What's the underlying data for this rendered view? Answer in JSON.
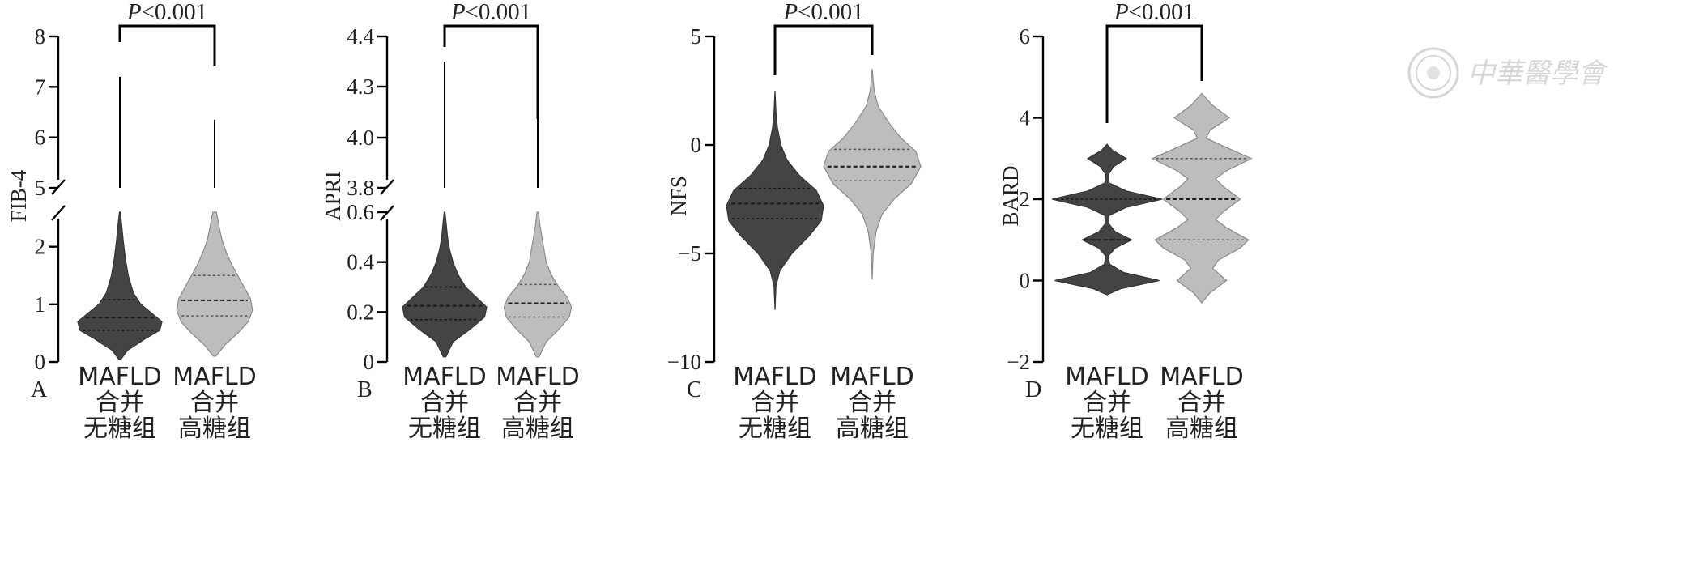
{
  "colors": {
    "group1": "#444444",
    "group2": "#bdbdbd"
  },
  "watermark": {
    "text": "中華醫學會",
    "icon": "seal-icon"
  },
  "chart_data": [
    {
      "panel": "A",
      "type": "violin",
      "ylabel": "FIB-4",
      "p_value": "P<0.001",
      "categories": [
        [
          "MAFLD",
          "合并",
          "无糖组"
        ],
        [
          "MAFLD",
          "合并",
          "高糖组"
        ]
      ],
      "axis_segments": [
        {
          "ylim": [
            0,
            2.6
          ],
          "ticks": [
            0,
            1,
            2
          ],
          "tick_labels": [
            "0",
            "1",
            "2"
          ]
        },
        {
          "ylim": [
            5,
            8
          ],
          "ticks": [
            5,
            6,
            7,
            8
          ],
          "tick_labels": [
            "5",
            "6",
            "7",
            "8"
          ]
        }
      ],
      "series": [
        {
          "min": 0.05,
          "q1": 0.55,
          "median": 0.77,
          "q3": 1.08,
          "max": 2.6,
          "upper_max": 7.2,
          "profile": [
            [
              0.05,
              0.03
            ],
            [
              0.2,
              0.18
            ],
            [
              0.4,
              0.6
            ],
            [
              0.55,
              0.95
            ],
            [
              0.7,
              1.0
            ],
            [
              0.85,
              0.75
            ],
            [
              1.0,
              0.5
            ],
            [
              1.2,
              0.32
            ],
            [
              1.5,
              0.2
            ],
            [
              1.8,
              0.13
            ],
            [
              2.1,
              0.08
            ],
            [
              2.4,
              0.04
            ],
            [
              2.6,
              0.01
            ]
          ]
        },
        {
          "min": 0.1,
          "q1": 0.8,
          "median": 1.07,
          "q3": 1.5,
          "max": 2.6,
          "upper_max": 6.35,
          "profile": [
            [
              0.1,
              0.03
            ],
            [
              0.3,
              0.25
            ],
            [
              0.5,
              0.55
            ],
            [
              0.7,
              0.8
            ],
            [
              0.9,
              0.9
            ],
            [
              1.1,
              0.85
            ],
            [
              1.3,
              0.7
            ],
            [
              1.5,
              0.55
            ],
            [
              1.7,
              0.4
            ],
            [
              1.9,
              0.28
            ],
            [
              2.1,
              0.18
            ],
            [
              2.3,
              0.12
            ],
            [
              2.5,
              0.07
            ],
            [
              2.6,
              0.04
            ]
          ]
        }
      ]
    },
    {
      "panel": "B",
      "type": "violin",
      "ylabel": "APRI",
      "p_value": "P<0.001",
      "categories": [
        [
          "MAFLD",
          "合并",
          "无糖组"
        ],
        [
          "MAFLD",
          "合并",
          "高糖组"
        ]
      ],
      "axis_segments": [
        {
          "ylim": [
            0,
            0.6
          ],
          "ticks": [
            0,
            0.2,
            0.4,
            0.6
          ],
          "tick_labels": [
            "0",
            "0.2",
            "0.4",
            "0.6"
          ]
        },
        {
          "ylim": [
            3.8,
            4.4
          ],
          "ticks": [
            3.8,
            4.0,
            4.3,
            4.4
          ],
          "tick_labels": [
            "3.8",
            "4.0",
            "4.3",
            "4.4"
          ]
        }
      ],
      "series": [
        {
          "min": 0.02,
          "q1": 0.17,
          "median": 0.225,
          "q3": 0.3,
          "max": 0.6,
          "upper_max": 4.35,
          "profile": [
            [
              0.02,
              0.03
            ],
            [
              0.08,
              0.2
            ],
            [
              0.13,
              0.6
            ],
            [
              0.18,
              0.95
            ],
            [
              0.22,
              1.0
            ],
            [
              0.26,
              0.75
            ],
            [
              0.3,
              0.5
            ],
            [
              0.35,
              0.32
            ],
            [
              0.4,
              0.2
            ],
            [
              0.45,
              0.12
            ],
            [
              0.5,
              0.07
            ],
            [
              0.55,
              0.04
            ],
            [
              0.6,
              0.01
            ]
          ]
        },
        {
          "min": 0.02,
          "q1": 0.18,
          "median": 0.235,
          "q3": 0.31,
          "max": 0.6,
          "upper_max": 4.12,
          "profile": [
            [
              0.02,
              0.03
            ],
            [
              0.08,
              0.2
            ],
            [
              0.13,
              0.5
            ],
            [
              0.18,
              0.75
            ],
            [
              0.22,
              0.8
            ],
            [
              0.26,
              0.7
            ],
            [
              0.3,
              0.5
            ],
            [
              0.35,
              0.32
            ],
            [
              0.4,
              0.2
            ],
            [
              0.45,
              0.15
            ],
            [
              0.5,
              0.1
            ],
            [
              0.55,
              0.05
            ],
            [
              0.6,
              0.02
            ]
          ]
        }
      ]
    },
    {
      "panel": "C",
      "type": "violin",
      "ylabel": "NFS",
      "p_value": "P<0.001",
      "categories": [
        [
          "MAFLD",
          "合并",
          "无糖组"
        ],
        [
          "MAFLD",
          "合并",
          "高糖组"
        ]
      ],
      "ylim": [
        -10,
        5
      ],
      "ticks": [
        -10,
        -5,
        0,
        5
      ],
      "tick_labels": [
        "−10",
        "−5",
        "0",
        "5"
      ],
      "series": [
        {
          "min": -7.6,
          "q1": -3.4,
          "median": -2.7,
          "q3": -2.0,
          "max": 2.5,
          "bracket_y": 3.2,
          "profile": [
            [
              -7.6,
              0.0
            ],
            [
              -6.5,
              0.02
            ],
            [
              -5.8,
              0.1
            ],
            [
              -5.0,
              0.35
            ],
            [
              -4.2,
              0.7
            ],
            [
              -3.5,
              0.95
            ],
            [
              -2.8,
              1.0
            ],
            [
              -2.1,
              0.85
            ],
            [
              -1.4,
              0.5
            ],
            [
              -0.7,
              0.25
            ],
            [
              0.0,
              0.12
            ],
            [
              0.8,
              0.05
            ],
            [
              1.5,
              0.02
            ],
            [
              2.5,
              0.0
            ]
          ]
        },
        {
          "min": -6.2,
          "q1": -1.65,
          "median": -1.0,
          "q3": -0.2,
          "max": 3.5,
          "bracket_y": 4.2,
          "profile": [
            [
              -6.2,
              0.0
            ],
            [
              -5.0,
              0.02
            ],
            [
              -4.0,
              0.08
            ],
            [
              -3.2,
              0.2
            ],
            [
              -2.5,
              0.45
            ],
            [
              -1.8,
              0.8
            ],
            [
              -1.0,
              1.0
            ],
            [
              -0.3,
              0.9
            ],
            [
              0.3,
              0.6
            ],
            [
              1.0,
              0.35
            ],
            [
              1.8,
              0.12
            ],
            [
              2.5,
              0.04
            ],
            [
              3.5,
              0.0
            ]
          ]
        }
      ]
    },
    {
      "panel": "D",
      "type": "violin",
      "ylabel": "BARD",
      "p_value": "P<0.001",
      "categories": [
        [
          "MAFLD",
          "合并",
          "无糖组"
        ],
        [
          "MAFLD",
          "合并",
          "高糖组"
        ]
      ],
      "ylim": [
        -2,
        6
      ],
      "ticks": [
        -2,
        0,
        2,
        4,
        6
      ],
      "tick_labels": [
        "−2",
        "0",
        "2",
        "4",
        "6"
      ],
      "series": [
        {
          "min": -0.35,
          "q1": 1.0,
          "median": 1.0,
          "q3": 2.0,
          "max": 3.35,
          "bracket_y": 3.9,
          "profile": [
            [
              -0.35,
              0.0
            ],
            [
              -0.2,
              0.25
            ],
            [
              0.0,
              0.95
            ],
            [
              0.2,
              0.3
            ],
            [
              0.4,
              0.05
            ],
            [
              0.6,
              0.02
            ],
            [
              0.8,
              0.15
            ],
            [
              1.0,
              0.45
            ],
            [
              1.2,
              0.15
            ],
            [
              1.4,
              0.03
            ],
            [
              1.6,
              0.04
            ],
            [
              1.8,
              0.35
            ],
            [
              2.0,
              1.0
            ],
            [
              2.2,
              0.35
            ],
            [
              2.4,
              0.04
            ],
            [
              2.6,
              0.02
            ],
            [
              2.8,
              0.12
            ],
            [
              3.0,
              0.35
            ],
            [
              3.2,
              0.1
            ],
            [
              3.35,
              0.0
            ]
          ]
        },
        {
          "min": -0.55,
          "q1": 1.0,
          "median": 2.0,
          "q3": 3.0,
          "max": 4.6,
          "bracket_y": 5.0,
          "profile": [
            [
              -0.55,
              0.0
            ],
            [
              -0.3,
              0.15
            ],
            [
              0.0,
              0.45
            ],
            [
              0.3,
              0.2
            ],
            [
              0.5,
              0.3
            ],
            [
              0.8,
              0.7
            ],
            [
              1.0,
              0.85
            ],
            [
              1.3,
              0.45
            ],
            [
              1.5,
              0.25
            ],
            [
              1.7,
              0.4
            ],
            [
              2.0,
              0.7
            ],
            [
              2.3,
              0.4
            ],
            [
              2.5,
              0.25
            ],
            [
              2.7,
              0.45
            ],
            [
              3.0,
              0.9
            ],
            [
              3.3,
              0.4
            ],
            [
              3.5,
              0.08
            ],
            [
              3.7,
              0.15
            ],
            [
              4.0,
              0.5
            ],
            [
              4.3,
              0.2
            ],
            [
              4.6,
              0.0
            ]
          ]
        }
      ]
    }
  ]
}
